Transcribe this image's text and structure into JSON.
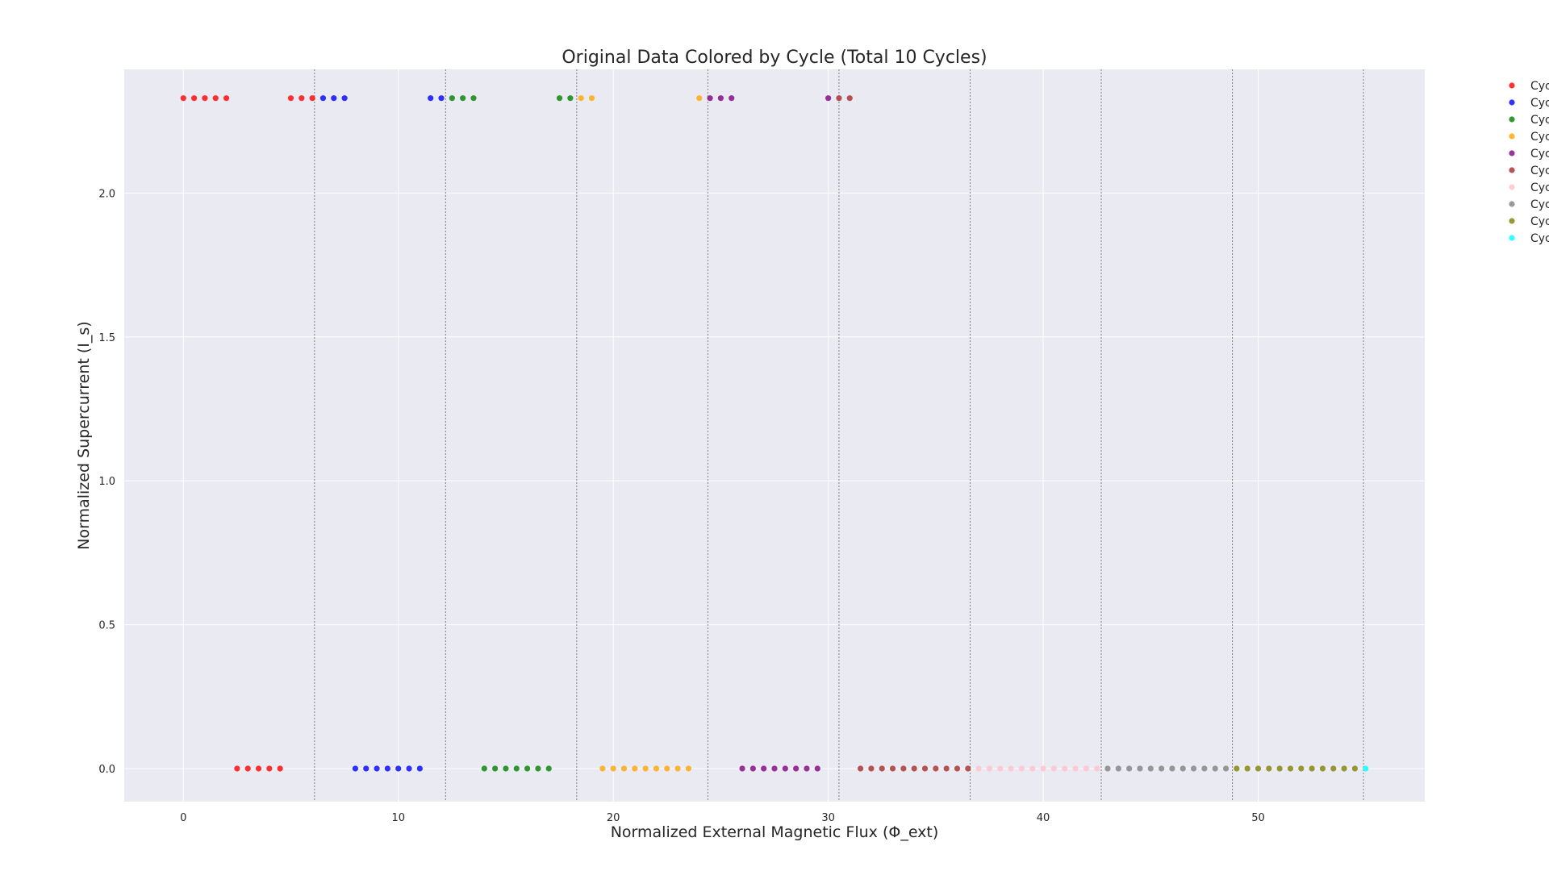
{
  "chart_data": {
    "type": "scatter",
    "title": "Original Data Colored by Cycle (Total 10 Cycles)",
    "xlabel": "Normalized External Magnetic Flux (Φ_ext)",
    "ylabel": "Normalized Supercurrent (I_s)",
    "xlim": [
      -2.75,
      57.75
    ],
    "ylim": [
      -0.115,
      2.43
    ],
    "xticks": [
      0,
      10,
      20,
      30,
      40,
      50
    ],
    "yticks": [
      0.0,
      0.5,
      1.0,
      1.5,
      2.0
    ],
    "xtick_labels": [
      "0",
      "10",
      "20",
      "30",
      "40",
      "50"
    ],
    "ytick_labels": [
      "0.0",
      "0.5",
      "1.0",
      "1.5",
      "2.0"
    ],
    "grid": true,
    "legend_position": "outside-top-right",
    "cycle_boundaries": [
      6.1,
      12.2,
      18.3,
      24.4,
      30.5,
      36.6,
      42.7,
      48.8,
      54.9
    ],
    "series": [
      {
        "name": "Cyc",
        "color": "#ff0000",
        "points": [
          [
            0,
            2.33
          ],
          [
            0.5,
            2.33
          ],
          [
            1,
            2.33
          ],
          [
            1.5,
            2.33
          ],
          [
            2,
            2.33
          ],
          [
            2.5,
            0
          ],
          [
            3,
            0
          ],
          [
            3.5,
            0
          ],
          [
            4,
            0
          ],
          [
            4.5,
            0
          ],
          [
            5,
            2.33
          ],
          [
            5.5,
            2.33
          ],
          [
            6,
            2.33
          ]
        ]
      },
      {
        "name": "Cyc",
        "color": "#0000ff",
        "points": [
          [
            6.5,
            2.33
          ],
          [
            7,
            2.33
          ],
          [
            7.5,
            2.33
          ],
          [
            8,
            0
          ],
          [
            8.5,
            0
          ],
          [
            9,
            0
          ],
          [
            9.5,
            0
          ],
          [
            10,
            0
          ],
          [
            10.5,
            0
          ],
          [
            11,
            0
          ],
          [
            11.5,
            2.33
          ],
          [
            12,
            2.33
          ]
        ]
      },
      {
        "name": "Cyc",
        "color": "#008000",
        "points": [
          [
            12.5,
            2.33
          ],
          [
            13,
            2.33
          ],
          [
            13.5,
            2.33
          ],
          [
            14,
            0
          ],
          [
            14.5,
            0
          ],
          [
            15,
            0
          ],
          [
            15.5,
            0
          ],
          [
            16,
            0
          ],
          [
            16.5,
            0
          ],
          [
            17,
            0
          ],
          [
            17.5,
            2.33
          ],
          [
            18,
            2.33
          ]
        ]
      },
      {
        "name": "Cyc",
        "color": "#ffa500",
        "points": [
          [
            18.5,
            2.33
          ],
          [
            19,
            2.33
          ],
          [
            19.5,
            0
          ],
          [
            20,
            0
          ],
          [
            20.5,
            0
          ],
          [
            21,
            0
          ],
          [
            21.5,
            0
          ],
          [
            22,
            0
          ],
          [
            22.5,
            0
          ],
          [
            23,
            0
          ],
          [
            23.5,
            0
          ],
          [
            24,
            2.33
          ]
        ]
      },
      {
        "name": "Cyc",
        "color": "#800080",
        "points": [
          [
            24.5,
            2.33
          ],
          [
            25,
            2.33
          ],
          [
            25.5,
            2.33
          ],
          [
            26,
            0
          ],
          [
            26.5,
            0
          ],
          [
            27,
            0
          ],
          [
            27.5,
            0
          ],
          [
            28,
            0
          ],
          [
            28.5,
            0
          ],
          [
            29,
            0
          ],
          [
            29.5,
            0
          ],
          [
            30,
            2.33
          ]
        ]
      },
      {
        "name": "Cyc",
        "color": "#a52a2a",
        "points": [
          [
            30.5,
            2.33
          ],
          [
            31,
            2.33
          ],
          [
            31.5,
            0
          ],
          [
            32,
            0
          ],
          [
            32.5,
            0
          ],
          [
            33,
            0
          ],
          [
            33.5,
            0
          ],
          [
            34,
            0
          ],
          [
            34.5,
            0
          ],
          [
            35,
            0
          ],
          [
            35.5,
            0
          ],
          [
            36,
            0
          ],
          [
            36.5,
            0
          ]
        ]
      },
      {
        "name": "Cyc",
        "color": "#ffc0cb",
        "points": [
          [
            37,
            0
          ],
          [
            37.5,
            0
          ],
          [
            38,
            0
          ],
          [
            38.5,
            0
          ],
          [
            39,
            0
          ],
          [
            39.5,
            0
          ],
          [
            40,
            0
          ],
          [
            40.5,
            0
          ],
          [
            41,
            0
          ],
          [
            41.5,
            0
          ],
          [
            42,
            0
          ],
          [
            42.5,
            0
          ]
        ]
      },
      {
        "name": "Cyc",
        "color": "#808080",
        "points": [
          [
            43,
            0
          ],
          [
            43.5,
            0
          ],
          [
            44,
            0
          ],
          [
            44.5,
            0
          ],
          [
            45,
            0
          ],
          [
            45.5,
            0
          ],
          [
            46,
            0
          ],
          [
            46.5,
            0
          ],
          [
            47,
            0
          ],
          [
            47.5,
            0
          ],
          [
            48,
            0
          ],
          [
            48.5,
            0
          ]
        ]
      },
      {
        "name": "Cyc",
        "color": "#808000",
        "points": [
          [
            49,
            0
          ],
          [
            49.5,
            0
          ],
          [
            50,
            0
          ],
          [
            50.5,
            0
          ],
          [
            51,
            0
          ],
          [
            51.5,
            0
          ],
          [
            52,
            0
          ],
          [
            52.5,
            0
          ],
          [
            53,
            0
          ],
          [
            53.5,
            0
          ],
          [
            54,
            0
          ],
          [
            54.5,
            0
          ]
        ]
      },
      {
        "name": "Cyc",
        "color": "#00ffff",
        "points": [
          [
            55,
            0
          ]
        ]
      }
    ]
  },
  "style": {
    "plot_background": "#eaeaf2",
    "grid_color": "#ffffff",
    "boundary_color": "#808080"
  }
}
